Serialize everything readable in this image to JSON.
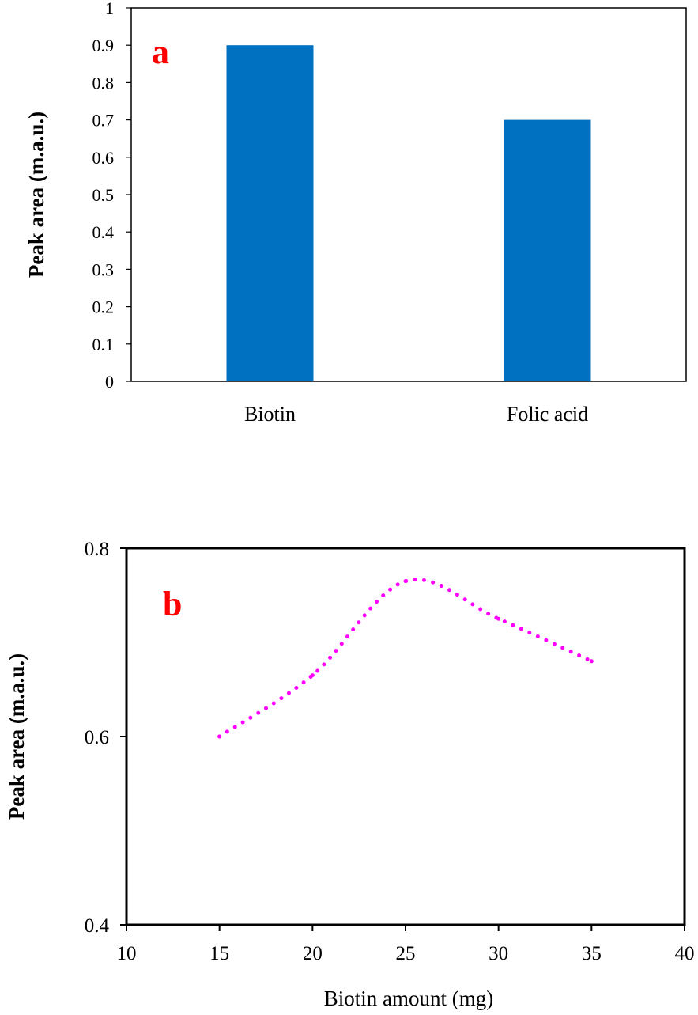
{
  "colors": {
    "bar": "#0070c0",
    "line": "#ff00ff",
    "panel_letter": "#ff0000",
    "axis": "#000000"
  },
  "chart_data": [
    {
      "type": "bar",
      "panel_label": "a",
      "categories": [
        "Biotin",
        "Folic acid"
      ],
      "values": [
        0.9,
        0.7
      ],
      "ylabel": "Peak area (m.a.u.)",
      "xlabel": "",
      "ylim": [
        0,
        1
      ],
      "yticks": [
        "0",
        "0.1",
        "0.2",
        "0.3",
        "0.4",
        "0.5",
        "0.6",
        "0.7",
        "0.8",
        "0.9",
        "1"
      ],
      "grid": false,
      "legend": "none"
    },
    {
      "type": "line",
      "line_style": "dotted",
      "panel_label": "b",
      "x": [
        15,
        20,
        25,
        30,
        35
      ],
      "y": [
        0.6,
        0.665,
        0.765,
        0.725,
        0.68
      ],
      "xlabel": "Biotin amount (mg)",
      "ylabel": "Peak area (m.a.u.)",
      "xlim": [
        10,
        40
      ],
      "ylim": [
        0.4,
        0.8
      ],
      "xticks": [
        "10",
        "15",
        "20",
        "25",
        "30",
        "35",
        "40"
      ],
      "yticks": [
        "0.4",
        "0.6",
        "0.8"
      ],
      "grid": false,
      "legend": "none"
    }
  ]
}
